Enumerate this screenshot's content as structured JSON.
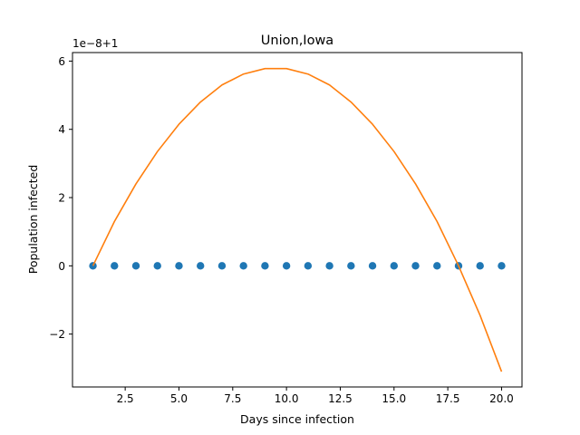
{
  "chart_data": {
    "type": "line",
    "title": "Union,Iowa",
    "xlabel": "Days since infection",
    "ylabel": "Population infected",
    "offset_text": "1e−8+1",
    "xlim": [
      0.05,
      20.95
    ],
    "ylim": [
      -3.55,
      6.25
    ],
    "x_ticks": [
      2.5,
      5.0,
      7.5,
      10.0,
      12.5,
      15.0,
      17.5,
      20.0
    ],
    "x_tick_labels": [
      "2.5",
      "5.0",
      "7.5",
      "10.0",
      "12.5",
      "15.0",
      "17.5",
      "20.0"
    ],
    "y_ticks": [
      -2,
      0,
      2,
      4,
      6
    ],
    "y_tick_labels": [
      "−2",
      "0",
      "2",
      "4",
      "6"
    ],
    "grid": false,
    "legend": "none",
    "series": [
      {
        "kind": "scatter",
        "color": "#1f77b4",
        "x": [
          1,
          2,
          3,
          4,
          5,
          6,
          7,
          8,
          9,
          10,
          11,
          12,
          13,
          14,
          15,
          16,
          17,
          18,
          19,
          20
        ],
        "y": [
          0,
          0,
          0,
          0,
          0,
          0,
          0,
          0,
          0,
          0,
          0,
          0,
          0,
          0,
          0,
          0,
          0,
          0,
          0,
          0
        ]
      },
      {
        "kind": "line",
        "color": "#ff7f0e",
        "x": [
          1,
          2,
          3,
          4,
          5,
          6,
          7,
          8,
          9,
          10,
          11,
          12,
          13,
          14,
          15,
          16,
          17,
          18,
          19,
          20
        ],
        "y": [
          0.0,
          1.3,
          2.4,
          3.35,
          4.15,
          4.8,
          5.3,
          5.62,
          5.78,
          5.78,
          5.62,
          5.3,
          4.8,
          4.15,
          3.35,
          2.4,
          1.3,
          0.0,
          -1.45,
          -3.1
        ]
      }
    ]
  }
}
